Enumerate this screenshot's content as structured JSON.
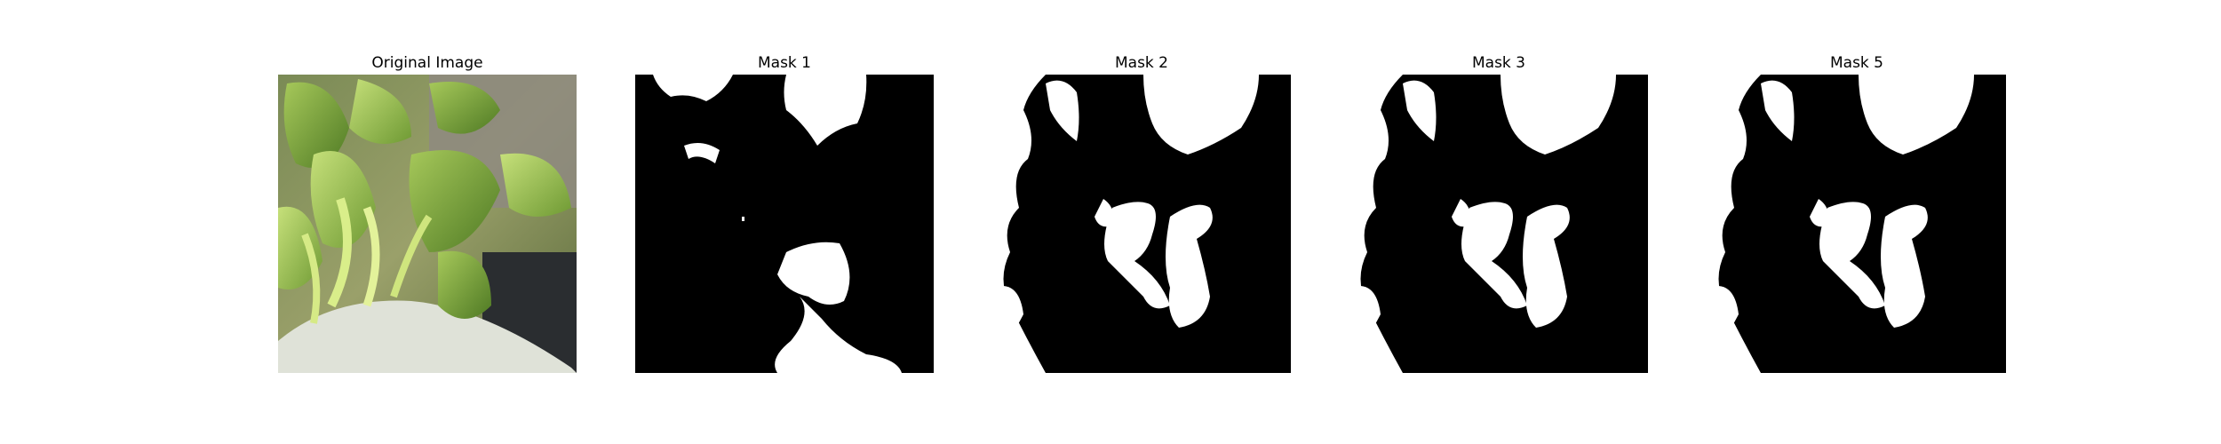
{
  "panels": [
    {
      "title": "Original Image",
      "kind": "photo",
      "subject": "green plant leaves in a white pot"
    },
    {
      "title": "Mask 1",
      "kind": "mask"
    },
    {
      "title": "Mask 2",
      "kind": "mask"
    },
    {
      "title": "Mask 3",
      "kind": "mask"
    },
    {
      "title": "Mask 5",
      "kind": "mask"
    }
  ],
  "colors": {
    "mask_background": "#000000",
    "mask_foreground": "#ffffff",
    "page_background": "#ffffff"
  }
}
